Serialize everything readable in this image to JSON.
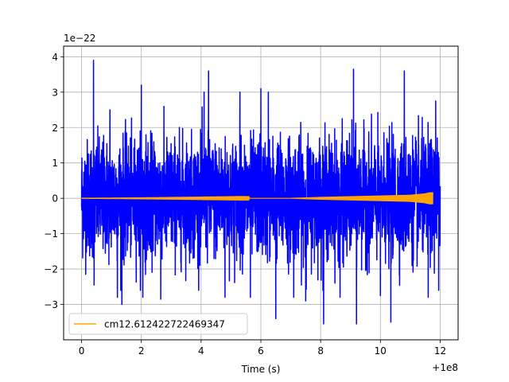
{
  "chart_data": {
    "type": "line",
    "title": "",
    "xlabel": "Time (s)",
    "ylabel": "",
    "x_offset_label": "+1e8",
    "y_scale_label": "1e−22",
    "xlim": [
      -0.6,
      12.6
    ],
    "ylim": [
      -4.0,
      4.3
    ],
    "x_ticks": [
      0,
      2,
      4,
      6,
      8,
      10,
      12
    ],
    "x_tick_labels": [
      "0",
      "2",
      "4",
      "6",
      "8",
      "10",
      "12"
    ],
    "y_ticks": [
      -3,
      -2,
      -1,
      0,
      1,
      2,
      3,
      4
    ],
    "y_tick_labels": [
      "−3",
      "−2",
      "−1",
      "0",
      "1",
      "2",
      "3",
      "4"
    ],
    "grid": true,
    "legend_position": "lower-left",
    "series": [
      {
        "name": "",
        "color": "#0000ff",
        "description_kind": "noise",
        "x_range": [
          0,
          12
        ],
        "typical_amplitude": 1.8,
        "peaks": [
          {
            "x": 0.4,
            "y": 2.65
          },
          {
            "x": 0.42,
            "y": -2.45
          },
          {
            "x": 0.4,
            "y": 3.9
          },
          {
            "x": 0.95,
            "y": 2.5
          },
          {
            "x": 1.2,
            "y": -2.8
          },
          {
            "x": 1.35,
            "y": -3.0
          },
          {
            "x": 2.0,
            "y": 3.2
          },
          {
            "x": 2.05,
            "y": -2.8
          },
          {
            "x": 2.65,
            "y": -2.85
          },
          {
            "x": 4.1,
            "y": 3.0
          },
          {
            "x": 4.25,
            "y": 3.6
          },
          {
            "x": 4.8,
            "y": -2.8
          },
          {
            "x": 5.3,
            "y": 3.0
          },
          {
            "x": 5.65,
            "y": -2.8
          },
          {
            "x": 6.0,
            "y": 3.1
          },
          {
            "x": 6.25,
            "y": 3.0
          },
          {
            "x": 6.5,
            "y": -3.4
          },
          {
            "x": 7.1,
            "y": -2.8
          },
          {
            "x": 7.5,
            "y": -2.9
          },
          {
            "x": 8.1,
            "y": -3.55
          },
          {
            "x": 8.65,
            "y": -2.8
          },
          {
            "x": 9.1,
            "y": 3.65
          },
          {
            "x": 9.2,
            "y": -3.55
          },
          {
            "x": 10.0,
            "y": -2.75
          },
          {
            "x": 10.35,
            "y": -3.5
          },
          {
            "x": 10.8,
            "y": 3.6
          },
          {
            "x": 11.6,
            "y": -2.8
          },
          {
            "x": 11.85,
            "y": 2.75
          },
          {
            "x": 11.95,
            "y": -2.6
          }
        ]
      },
      {
        "name": "cm12.612422722469347",
        "color": "#ffa500",
        "x_range": [
          0,
          11.75
        ],
        "y_values_at_x": [
          {
            "x": 0,
            "amplitude": 0.0
          },
          {
            "x": 7.0,
            "amplitude": 0.01
          },
          {
            "x": 8.0,
            "amplitude": 0.04
          },
          {
            "x": 9.0,
            "amplitude": 0.06
          },
          {
            "x": 10.0,
            "amplitude": 0.08
          },
          {
            "x": 11.0,
            "amplitude": 0.1
          },
          {
            "x": 11.5,
            "amplitude": 0.14
          },
          {
            "x": 11.65,
            "amplitude": 0.17
          }
        ]
      }
    ]
  }
}
